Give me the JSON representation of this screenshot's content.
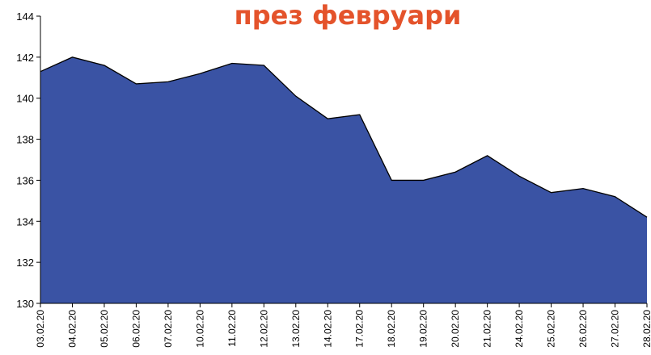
{
  "chart_data": {
    "type": "area",
    "title": "през февруари",
    "categories": [
      "03.02.20",
      "04.02.20",
      "05.02.20",
      "06.02.20",
      "07.02.20",
      "10.02.20",
      "11.02.20",
      "12.02.20",
      "13.02.20",
      "14.02.20",
      "17.02.20",
      "18.02.20",
      "19.02.20",
      "20.02.20",
      "21.02.20",
      "24.02.20",
      "25.02.20",
      "26.02.20",
      "27.02.20",
      "28.02.20"
    ],
    "values": [
      141.3,
      142.0,
      141.6,
      140.7,
      140.8,
      141.2,
      141.7,
      141.6,
      140.1,
      139.0,
      139.2,
      136.0,
      136.0,
      136.4,
      137.2,
      136.2,
      135.4,
      135.6,
      135.2,
      134.2
    ],
    "color": "#3a53a4",
    "ylim": [
      130,
      144
    ],
    "yticks": [
      130,
      132,
      134,
      136,
      138,
      140,
      142,
      144
    ]
  }
}
